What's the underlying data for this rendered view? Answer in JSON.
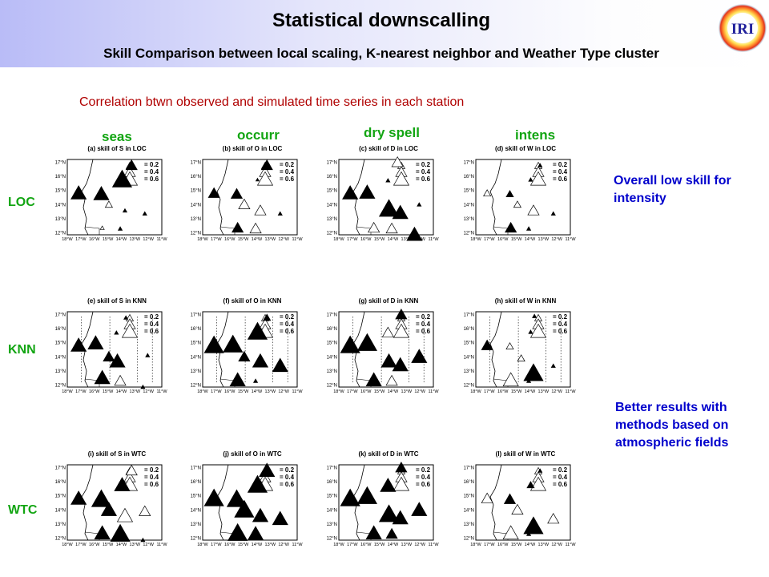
{
  "header": {
    "title": "Statistical downscalling",
    "subtitle": "Skill Comparison between local scaling, K-nearest neighbor and Weather Type cluster",
    "logo_text": "IRI"
  },
  "intro": "Correlation btwn observed and simulated time series in each station",
  "columns": [
    "seas",
    "occurr",
    "dry spell",
    "intens"
  ],
  "rows": [
    "LOC",
    "KNN",
    "WTC"
  ],
  "notes": {
    "loc": "Overall low skill for intensity",
    "wtc": "Better results with methods based on atmospheric fields"
  },
  "map_axes": {
    "lat_labels": [
      "17°N",
      "16°N",
      "15°N",
      "14°N",
      "13°N",
      "12°N"
    ],
    "lon_labels": [
      "18°W",
      "17°W",
      "16°W",
      "15°W",
      "14°W",
      "13°W",
      "12°W",
      "11°W"
    ]
  },
  "legend": [
    "= 0.2",
    "= 0.4",
    "= 0.6"
  ],
  "colors": {
    "title": "#000000",
    "intro": "#b00000",
    "labels": "#12a512",
    "notes": "#0000cc"
  },
  "panels": [
    {
      "title": "(a) skill of S in LOC",
      "dashed": false,
      "stations": [
        [
          0.68,
          0.08,
          3,
          1
        ],
        [
          0.12,
          0.45,
          4,
          1
        ],
        [
          0.36,
          0.46,
          4,
          1
        ],
        [
          0.58,
          0.27,
          5,
          1
        ],
        [
          0.44,
          0.6,
          2,
          0
        ],
        [
          0.82,
          0.72,
          1,
          1
        ],
        [
          0.61,
          0.68,
          1,
          1
        ],
        [
          0.37,
          0.91,
          1,
          0
        ],
        [
          0.56,
          0.92,
          1,
          1
        ]
      ]
    },
    {
      "title": "(b) skill of O in LOC",
      "dashed": false,
      "stations": [
        [
          0.68,
          0.08,
          3,
          1
        ],
        [
          0.12,
          0.45,
          3,
          1
        ],
        [
          0.36,
          0.46,
          3,
          1
        ],
        [
          0.58,
          0.27,
          6,
          1
        ],
        [
          0.44,
          0.6,
          3,
          0
        ],
        [
          0.82,
          0.72,
          1,
          1
        ],
        [
          0.61,
          0.68,
          3,
          0
        ],
        [
          0.37,
          0.91,
          3,
          1
        ],
        [
          0.56,
          0.92,
          3,
          0
        ]
      ]
    },
    {
      "title": "(c) skill of D in LOC",
      "dashed": false,
      "stations": [
        [
          0.62,
          0.04,
          3,
          0
        ],
        [
          0.12,
          0.45,
          4,
          1
        ],
        [
          0.3,
          0.44,
          4,
          1
        ],
        [
          0.53,
          0.66,
          5,
          1
        ],
        [
          0.65,
          0.71,
          4,
          1
        ],
        [
          0.85,
          0.6,
          1,
          1
        ],
        [
          0.52,
          0.28,
          1,
          1
        ],
        [
          0.37,
          0.91,
          3,
          0
        ],
        [
          0.56,
          0.92,
          3,
          0
        ],
        [
          0.8,
          1.0,
          4,
          1
        ]
      ]
    },
    {
      "title": "(d) skill of W in LOC",
      "dashed": false,
      "stations": [
        [
          0.68,
          0.08,
          1,
          1
        ],
        [
          0.12,
          0.45,
          2,
          0
        ],
        [
          0.36,
          0.46,
          2,
          1
        ],
        [
          0.58,
          0.27,
          1,
          1
        ],
        [
          0.44,
          0.6,
          2,
          0
        ],
        [
          0.82,
          0.72,
          1,
          1
        ],
        [
          0.61,
          0.68,
          3,
          0
        ],
        [
          0.37,
          0.91,
          3,
          1
        ],
        [
          0.56,
          0.92,
          1,
          1
        ]
      ]
    },
    {
      "title": "(e) skill of S in KNN",
      "dashed": true,
      "stations": [
        [
          0.62,
          0.08,
          1,
          1
        ],
        [
          0.12,
          0.45,
          4,
          1
        ],
        [
          0.3,
          0.42,
          4,
          1
        ],
        [
          0.53,
          0.66,
          4,
          1
        ],
        [
          0.44,
          0.6,
          3,
          1
        ],
        [
          0.85,
          0.58,
          1,
          1
        ],
        [
          0.52,
          0.28,
          1,
          1
        ],
        [
          0.37,
          0.88,
          4,
          1
        ],
        [
          0.56,
          0.92,
          3,
          0
        ],
        [
          0.8,
          1.0,
          1,
          1
        ]
      ]
    },
    {
      "title": "(f) skill of O in KNN",
      "dashed": true,
      "stations": [
        [
          0.68,
          0.08,
          2,
          1
        ],
        [
          0.12,
          0.45,
          5,
          1
        ],
        [
          0.32,
          0.44,
          5,
          1
        ],
        [
          0.58,
          0.27,
          5,
          1
        ],
        [
          0.44,
          0.6,
          3,
          1
        ],
        [
          0.82,
          0.72,
          4,
          1
        ],
        [
          0.61,
          0.66,
          4,
          1
        ],
        [
          0.37,
          0.91,
          4,
          1
        ],
        [
          0.56,
          0.92,
          1,
          1
        ]
      ]
    },
    {
      "title": "(g) skill of D in KNN",
      "dashed": true,
      "stations": [
        [
          0.66,
          0.04,
          3,
          1
        ],
        [
          0.12,
          0.45,
          5,
          1
        ],
        [
          0.3,
          0.42,
          5,
          1
        ],
        [
          0.53,
          0.66,
          4,
          1
        ],
        [
          0.65,
          0.71,
          4,
          1
        ],
        [
          0.85,
          0.6,
          4,
          1
        ],
        [
          0.52,
          0.28,
          3,
          0
        ],
        [
          0.37,
          0.91,
          4,
          1
        ],
        [
          0.56,
          0.92,
          3,
          0
        ]
      ]
    },
    {
      "title": "(h) skill of W in KNN",
      "dashed": true,
      "stations": [
        [
          0.62,
          0.06,
          1,
          1
        ],
        [
          0.12,
          0.45,
          3,
          1
        ],
        [
          0.36,
          0.46,
          2,
          0
        ],
        [
          0.58,
          0.27,
          1,
          1
        ],
        [
          0.48,
          0.62,
          2,
          0
        ],
        [
          0.82,
          0.72,
          1,
          1
        ],
        [
          0.61,
          0.82,
          5,
          1
        ],
        [
          0.37,
          0.91,
          4,
          0
        ],
        [
          0.56,
          0.92,
          1,
          1
        ]
      ]
    },
    {
      "title": "(i) skill of S in WTC",
      "dashed": false,
      "stations": [
        [
          0.68,
          0.08,
          3,
          0
        ],
        [
          0.12,
          0.45,
          4,
          1
        ],
        [
          0.36,
          0.46,
          5,
          1
        ],
        [
          0.58,
          0.27,
          4,
          1
        ],
        [
          0.44,
          0.6,
          4,
          1
        ],
        [
          0.82,
          0.62,
          3,
          0
        ],
        [
          0.61,
          0.68,
          4,
          0
        ],
        [
          0.37,
          0.91,
          4,
          1
        ],
        [
          0.56,
          0.92,
          5,
          1
        ],
        [
          0.8,
          1.0,
          1,
          1
        ]
      ]
    },
    {
      "title": "(j) skill of O in WTC",
      "dashed": false,
      "stations": [
        [
          0.68,
          0.08,
          4,
          1
        ],
        [
          0.12,
          0.45,
          5,
          1
        ],
        [
          0.36,
          0.46,
          5,
          1
        ],
        [
          0.58,
          0.27,
          5,
          1
        ],
        [
          0.44,
          0.6,
          5,
          1
        ],
        [
          0.82,
          0.72,
          4,
          1
        ],
        [
          0.61,
          0.68,
          4,
          1
        ],
        [
          0.37,
          0.91,
          5,
          1
        ],
        [
          0.56,
          0.92,
          4,
          1
        ]
      ]
    },
    {
      "title": "(k) skill of D in WTC",
      "dashed": false,
      "stations": [
        [
          0.66,
          0.04,
          3,
          1
        ],
        [
          0.12,
          0.45,
          5,
          1
        ],
        [
          0.3,
          0.42,
          5,
          1
        ],
        [
          0.53,
          0.66,
          5,
          1
        ],
        [
          0.65,
          0.71,
          4,
          1
        ],
        [
          0.85,
          0.6,
          4,
          1
        ],
        [
          0.52,
          0.28,
          4,
          1
        ],
        [
          0.37,
          0.91,
          4,
          1
        ],
        [
          0.56,
          0.92,
          3,
          1
        ]
      ]
    },
    {
      "title": "(l) skill of W in WTC",
      "dashed": false,
      "stations": [
        [
          0.68,
          0.08,
          1,
          1
        ],
        [
          0.12,
          0.45,
          3,
          0
        ],
        [
          0.36,
          0.46,
          3,
          1
        ],
        [
          0.58,
          0.27,
          2,
          1
        ],
        [
          0.44,
          0.6,
          3,
          0
        ],
        [
          0.82,
          0.72,
          3,
          0
        ],
        [
          0.61,
          0.82,
          5,
          1
        ],
        [
          0.37,
          0.91,
          4,
          0
        ],
        [
          0.56,
          0.92,
          1,
          1
        ]
      ]
    }
  ]
}
